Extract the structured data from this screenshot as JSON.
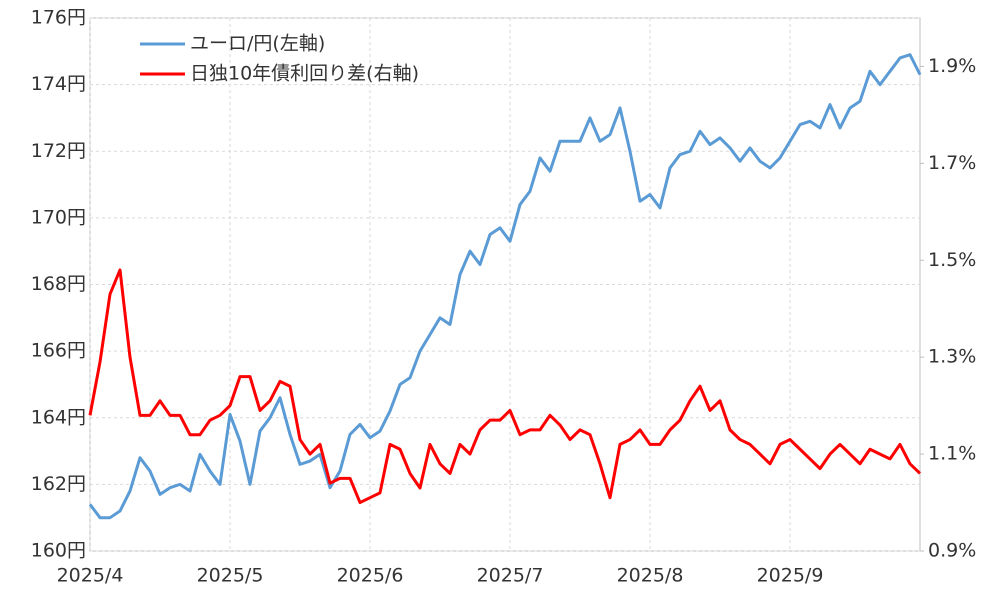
{
  "chart_data": {
    "type": "line",
    "categories": [
      "2025/4",
      null,
      null,
      null,
      null,
      null,
      null,
      null,
      null,
      null,
      null,
      null,
      null,
      null,
      "2025/5",
      null,
      null,
      null,
      null,
      null,
      null,
      null,
      null,
      null,
      null,
      null,
      null,
      null,
      "2025/6",
      null,
      null,
      null,
      null,
      null,
      null,
      null,
      null,
      null,
      null,
      null,
      null,
      null,
      "2025/7",
      null,
      null,
      null,
      null,
      null,
      null,
      null,
      null,
      null,
      null,
      null,
      null,
      null,
      "2025/8",
      null,
      null,
      null,
      null,
      null,
      null,
      null,
      null,
      null,
      null,
      null,
      null,
      null,
      "2025/9",
      null,
      null,
      null,
      null,
      null,
      null,
      null,
      null,
      null,
      null,
      null,
      null,
      null
    ],
    "series": [
      {
        "name": "ユーロ/円(左軸)",
        "color": "#5b9bd5",
        "axis": "y",
        "values": [
          161.4,
          161.0,
          161.0,
          161.2,
          161.8,
          162.8,
          162.4,
          161.7,
          161.9,
          162.0,
          161.8,
          162.9,
          162.4,
          162.0,
          164.1,
          163.3,
          162.0,
          163.6,
          164.0,
          164.6,
          163.5,
          162.6,
          162.7,
          162.9,
          161.9,
          162.4,
          163.5,
          163.8,
          163.4,
          163.6,
          164.2,
          165.0,
          165.2,
          166.0,
          166.5,
          167.0,
          166.8,
          168.3,
          169.0,
          168.6,
          169.5,
          169.7,
          169.3,
          170.4,
          170.8,
          171.8,
          171.4,
          172.3,
          172.3,
          172.3,
          173.0,
          172.3,
          172.5,
          173.3,
          172.0,
          170.5,
          170.7,
          170.3,
          171.5,
          171.9,
          172.0,
          172.6,
          172.2,
          172.4,
          172.1,
          171.7,
          172.1,
          171.7,
          171.5,
          171.8,
          172.3,
          172.8,
          172.9,
          172.7,
          173.4,
          172.7,
          173.3,
          173.5,
          174.4,
          174.0,
          174.4,
          174.8,
          174.9,
          174.3
        ]
      },
      {
        "name": "日独10年債利回り差(右軸)",
        "color": "#ff0000",
        "axis": "y2",
        "values": [
          1.18,
          1.29,
          1.43,
          1.48,
          1.3,
          1.18,
          1.18,
          1.21,
          1.18,
          1.18,
          1.14,
          1.14,
          1.17,
          1.18,
          1.2,
          1.26,
          1.26,
          1.19,
          1.21,
          1.25,
          1.24,
          1.13,
          1.1,
          1.12,
          1.04,
          1.05,
          1.05,
          1.0,
          1.01,
          1.02,
          1.12,
          1.11,
          1.06,
          1.03,
          1.12,
          1.08,
          1.06,
          1.12,
          1.1,
          1.15,
          1.17,
          1.17,
          1.19,
          1.14,
          1.15,
          1.15,
          1.18,
          1.16,
          1.13,
          1.15,
          1.14,
          1.08,
          1.01,
          1.12,
          1.13,
          1.15,
          1.12,
          1.12,
          1.15,
          1.17,
          1.21,
          1.24,
          1.19,
          1.21,
          1.15,
          1.13,
          1.12,
          1.1,
          1.08,
          1.12,
          1.13,
          1.11,
          1.09,
          1.07,
          1.1,
          1.12,
          1.1,
          1.08,
          1.11,
          1.1,
          1.09,
          1.12,
          1.08,
          1.06
        ]
      }
    ],
    "ylim": [
      160,
      176
    ],
    "yticks": [
      {
        "value": 160,
        "label": "160円"
      },
      {
        "value": 162,
        "label": "162円"
      },
      {
        "value": 164,
        "label": "164円"
      },
      {
        "value": 166,
        "label": "166円"
      },
      {
        "value": 168,
        "label": "168円"
      },
      {
        "value": 170,
        "label": "170円"
      },
      {
        "value": 172,
        "label": "172円"
      },
      {
        "value": 174,
        "label": "174円"
      },
      {
        "value": 176,
        "label": "176円"
      }
    ],
    "y2lim": [
      0.9,
      2.0
    ],
    "y2ticks": [
      {
        "value": 0.9,
        "label": "0.9%"
      },
      {
        "value": 1.1,
        "label": "1.1%"
      },
      {
        "value": 1.3,
        "label": "1.3%"
      },
      {
        "value": 1.5,
        "label": "1.5%"
      },
      {
        "value": 1.7,
        "label": "1.7%"
      },
      {
        "value": 1.9,
        "label": "1.9%"
      }
    ],
    "grid": true,
    "legend": "upper left"
  }
}
